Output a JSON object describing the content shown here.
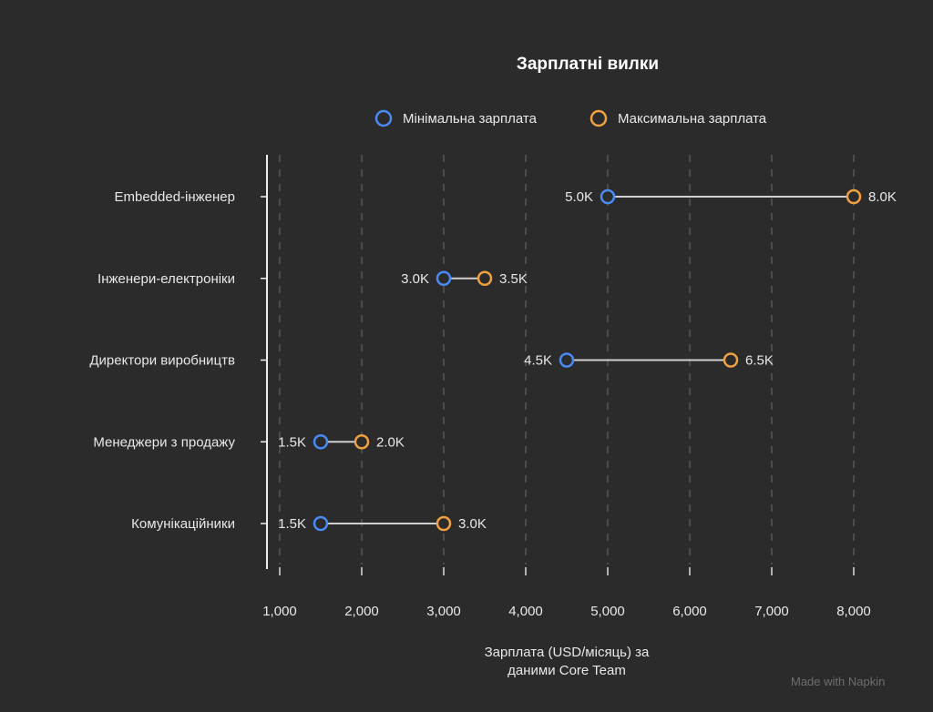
{
  "chart_data": {
    "type": "dumbbell",
    "title": "Зарплатні вилки",
    "xlabel": "Зарплата (USD/місяць) за даними Core Team",
    "ylabel": "",
    "xlim": [
      1000,
      8000
    ],
    "xticks": [
      "1,000",
      "2,000",
      "3,000",
      "4,000",
      "5,000",
      "6,000",
      "7,000",
      "8,000"
    ],
    "grid": "vertical dashed",
    "legend_position": "top",
    "categories": [
      "Embedded-інженер",
      "Інженери-електроніки",
      "Директори виробництв",
      "Менеджери з продажу",
      "Комунікаційники"
    ],
    "series": [
      {
        "name": "Мінімальна зарплата",
        "color": "#4a8af4",
        "values": [
          5000,
          3000,
          4500,
          1500,
          1500
        ],
        "labels": [
          "5.0K",
          "3.0K",
          "4.5K",
          "1.5K",
          "1.5K"
        ]
      },
      {
        "name": "Максимальна зарплата",
        "color": "#f0a040",
        "values": [
          8000,
          3500,
          6500,
          2000,
          3000
        ],
        "labels": [
          "8.0K",
          "3.5K",
          "6.5K",
          "2.0K",
          "3.0K"
        ]
      }
    ]
  },
  "watermark": "Made with Napkin"
}
